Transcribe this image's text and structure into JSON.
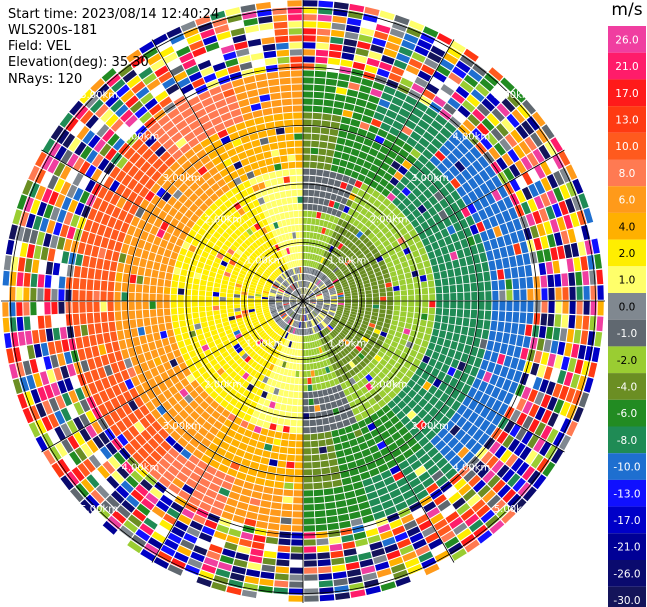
{
  "header": {
    "start_time": "Start time: 2023/08/14 12:40:24",
    "instrument": "WLS200s-181",
    "field": "Field: VEL",
    "elevation": "Elevation(deg): 35.30",
    "nrays": "NRays: 120"
  },
  "colorbar": {
    "unit": "m/s",
    "labels": [
      "26.0",
      "21.0",
      "17.0",
      "13.0",
      "10.0",
      "8.0",
      "6.0",
      "4.0",
      "2.0",
      "1.0",
      "0.0",
      "-1.0",
      "-2.0",
      "-4.0",
      "-6.0",
      "-8.0",
      "-10.0",
      "-13.0",
      "-17.0",
      "-21.0",
      "-26.0",
      "-30.0"
    ],
    "colors": [
      "#f03ea0",
      "#ff1c6a",
      "#ff1a1a",
      "#ff3a12",
      "#ff5a1e",
      "#ff7a52",
      "#ff9a1a",
      "#ffb000",
      "#ffee00",
      "#ffff6a",
      "#808890",
      "#606870",
      "#9acd32",
      "#6b8e23",
      "#228b22",
      "#1f8b55",
      "#1e6fd0",
      "#1010ff",
      "#0000c8",
      "#000096",
      "#0a0a6e",
      "#14145a"
    ]
  },
  "ring_labels": [
    "1.00km",
    "2.00km",
    "3.00km",
    "4.00km",
    "5.00km"
  ],
  "chart_data": {
    "type": "ppi",
    "field": "VEL",
    "units": "m/s",
    "nrays": 120,
    "elevation_deg": 35.3,
    "range_rings_km": [
      1,
      2,
      3,
      4,
      5
    ],
    "azimuth_spokes_deg": [
      0,
      30,
      60,
      90,
      120,
      150,
      180,
      210,
      240,
      270,
      300,
      330
    ],
    "colorbar_ticks": [
      26,
      21,
      17,
      13,
      10,
      8,
      6,
      4,
      2,
      1,
      0,
      -1,
      -2,
      -4,
      -6,
      -8,
      -10,
      -13,
      -17,
      -21,
      -26,
      -30
    ],
    "coherent_rings": [
      {
        "r_km": [
          0.0,
          0.6
        ],
        "pattern": "near-zero grey"
      },
      {
        "r_km": [
          0.6,
          1.5
        ],
        "west": 2.0,
        "east": -4.0
      },
      {
        "r_km": [
          1.5,
          2.3
        ],
        "west": 2.0,
        "east": -2.0
      },
      {
        "r_km": [
          2.3,
          3.2
        ],
        "west": 6.0,
        "east": -8.0
      },
      {
        "r_km": [
          3.2,
          4.0
        ],
        "west": 10.0,
        "east": -10.0
      }
    ],
    "outer_pattern": "noise (random velocities) beyond about 4 km"
  }
}
